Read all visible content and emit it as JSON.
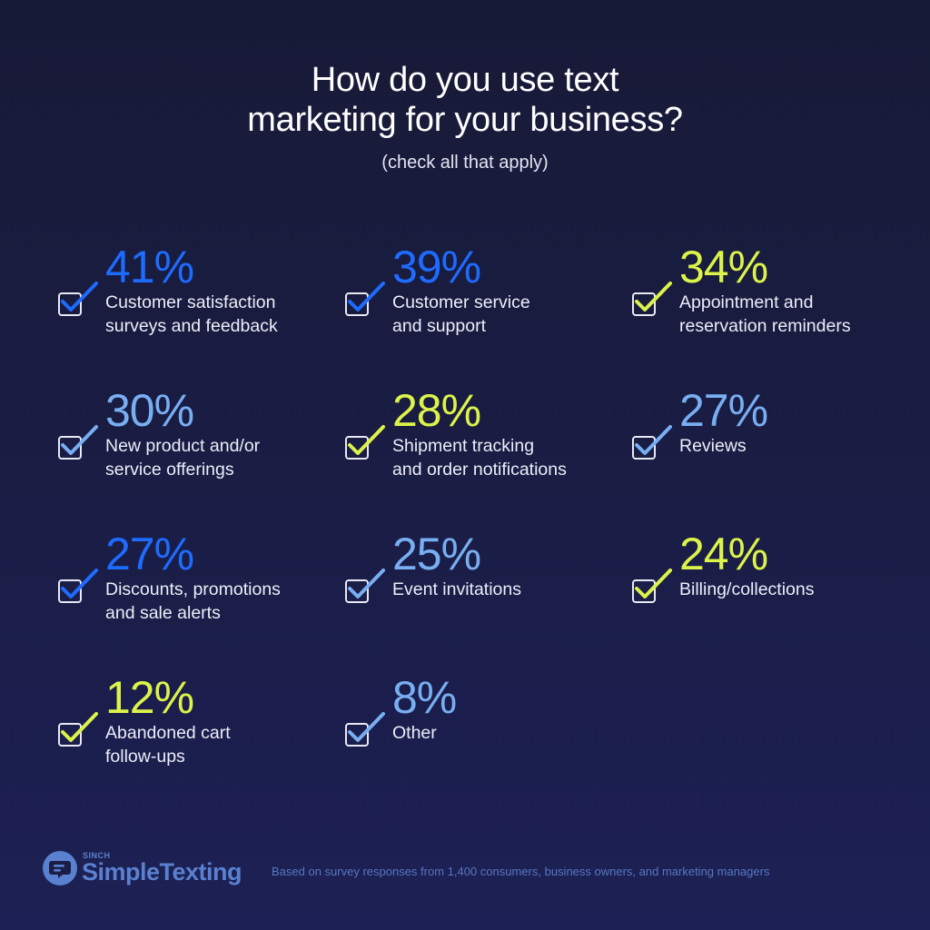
{
  "title": {
    "line1": "How do you use text",
    "line2": "marketing for your business?",
    "subtitle": "(check all that apply)"
  },
  "colors": {
    "background": "#171a36",
    "blue": "#1e6bff",
    "lime": "#dcf34a",
    "lightblue": "#78aef2",
    "checkbox_border": "#e8e9f4",
    "footer": "#5a80d0"
  },
  "items": [
    {
      "value": "41%",
      "line1": "Customer satisfaction",
      "line2": "surveys and feedback",
      "color": "#1e6bff",
      "icon": "checkbox-checked-icon"
    },
    {
      "value": "39%",
      "line1": "Customer service",
      "line2": "and support",
      "color": "#1e6bff",
      "icon": "checkbox-checked-icon"
    },
    {
      "value": "34%",
      "line1": "Appointment and",
      "line2": "reservation reminders",
      "color": "#dcf34a",
      "icon": "checkbox-checked-icon"
    },
    {
      "value": "30%",
      "line1": "New product and/or",
      "line2": "service offerings",
      "color": "#78aef2",
      "icon": "checkbox-checked-icon"
    },
    {
      "value": "28%",
      "line1": "Shipment tracking",
      "line2": "and order notifications",
      "color": "#dcf34a",
      "icon": "checkbox-checked-icon"
    },
    {
      "value": "27%",
      "line1": "Reviews",
      "line2": "",
      "color": "#78aef2",
      "icon": "checkbox-checked-icon"
    },
    {
      "value": "27%",
      "line1": "Discounts, promotions",
      "line2": "and sale alerts",
      "color": "#1e6bff",
      "icon": "checkbox-checked-icon"
    },
    {
      "value": "25%",
      "line1": "Event invitations",
      "line2": "",
      "color": "#78aef2",
      "icon": "checkbox-checked-icon"
    },
    {
      "value": "24%",
      "line1": "Billing/collections",
      "line2": "",
      "color": "#dcf34a",
      "icon": "checkbox-checked-icon"
    },
    {
      "value": "12%",
      "line1": "Abandoned cart",
      "line2": "follow-ups",
      "color": "#dcf34a",
      "icon": "checkbox-checked-icon"
    },
    {
      "value": "8%",
      "line1": "Other",
      "line2": "",
      "color": "#78aef2",
      "icon": "checkbox-checked-icon"
    }
  ],
  "footer": {
    "brand_small": "SINCH",
    "brand_name": "SimpleTexting",
    "note": "Based on survey responses from 1,400 consumers, business owners, and marketing managers"
  },
  "chart_data": {
    "type": "table",
    "title": "How do you use text marketing for your business?",
    "subtitle": "(check all that apply)",
    "categories": [
      "Customer satisfaction surveys and feedback",
      "Customer service and support",
      "Appointment and reservation reminders",
      "New product and/or service offerings",
      "Shipment tracking and order notifications",
      "Reviews",
      "Discounts, promotions and sale alerts",
      "Event invitations",
      "Billing/collections",
      "Abandoned cart follow-ups",
      "Other"
    ],
    "values": [
      41,
      39,
      34,
      30,
      28,
      27,
      27,
      25,
      24,
      12,
      8
    ],
    "unit": "%",
    "source_note": "Based on survey responses from 1,400 consumers, business owners, and marketing managers"
  }
}
